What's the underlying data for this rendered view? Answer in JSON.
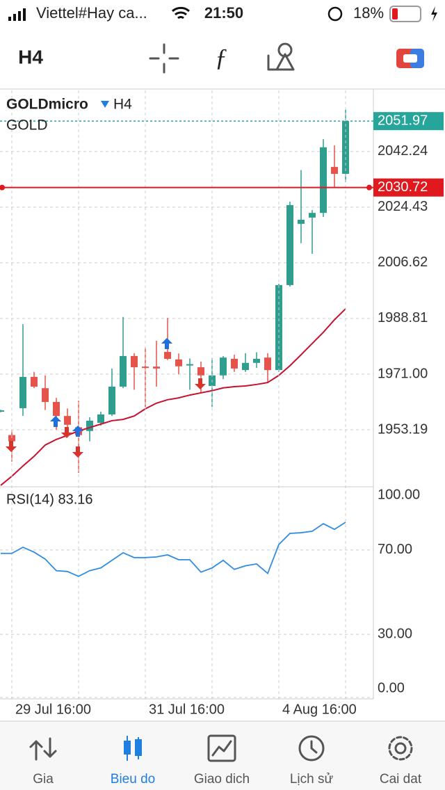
{
  "status_bar": {
    "carrier": "Viettel#Hay ca...",
    "time": "21:50",
    "battery": "18%"
  },
  "toolbar": {
    "timeframe": "H4"
  },
  "chart_data": [
    {
      "type": "candlestick",
      "symbol": "GOLDmicro",
      "timeframe": "H4",
      "description": "GOLD",
      "categories": [
        null,
        "29 Jul 16:00",
        null,
        null,
        null,
        null,
        null,
        null,
        null,
        null,
        null,
        null,
        null,
        "31 Jul 16:00",
        null,
        null,
        null,
        null,
        null,
        null,
        null,
        null,
        null,
        null,
        null,
        "4 Aug 16:00",
        null,
        null,
        null,
        null,
        null,
        null
      ],
      "open": [
        1959.0,
        1951.5,
        1960.1,
        1970.1,
        1966.5,
        1962.1,
        1957.6,
        1954.0,
        1952.8,
        1955.4,
        1958.1,
        1967.0,
        1976.8,
        1973.4,
        1973.4,
        1978.1,
        1975.7,
        1973.8,
        1973.2,
        1967.2,
        1970.6,
        1975.9,
        1972.3,
        1974.6,
        1976.3,
        1972.3,
        1999.5,
        2019.1,
        2021.1,
        2022.6,
        2037.3,
        2035.1
      ],
      "high": [
        1959.6,
        1953.0,
        1987.0,
        1971.7,
        1970.6,
        1963.4,
        1960.0,
        1962.5,
        1957.2,
        1959.0,
        1972.8,
        1989.3,
        1977.7,
        1979.5,
        1981.7,
        1989.0,
        1977.6,
        1976.0,
        1975.0,
        1976.1,
        1976.8,
        1977.2,
        1977.7,
        1978.0,
        1977.7,
        1999.9,
        2026.2,
        2036.3,
        2023.5,
        2046.2,
        2044.2,
        2055.6
      ],
      "low": [
        1958.8,
        1943.0,
        1957.6,
        1966.5,
        1959.5,
        1953.2,
        1951.0,
        1939.4,
        1949.5,
        1954.5,
        1957.6,
        1966.5,
        1966.0,
        1960.5,
        1967.0,
        1975.5,
        1971.0,
        1966.0,
        1965.0,
        1960.5,
        1969.4,
        1971.7,
        1971.7,
        1973.0,
        1968.3,
        1971.7,
        1999.0,
        2012.9,
        2009.5,
        2021.3,
        2030.6,
        2032.4
      ],
      "close": [
        1959.4,
        1949.5,
        1970.1,
        1967.0,
        1962.1,
        1957.6,
        1954.8,
        1951.5,
        1956.1,
        1958.1,
        1967.0,
        1976.8,
        1973.2,
        1973.0,
        1972.8,
        1975.9,
        1973.5,
        1974.2,
        1970.6,
        1970.6,
        1976.3,
        1972.8,
        1974.6,
        1975.9,
        1972.3,
        1999.5,
        2025.1,
        2020.4,
        2022.6,
        2043.6,
        2035.1,
        2051.97
      ],
      "up_color": "#2f9e8f",
      "down_color": "#e5534b",
      "series": [
        {
          "color": "#c8102e",
          "values": [
            1935.4,
            1938.3,
            1941.6,
            1944.7,
            1948.3,
            1950.1,
            1951.4,
            1952.8,
            1953.9,
            1955.0,
            1956.1,
            1956.5,
            1957.6,
            1959.9,
            1961.7,
            1962.8,
            1963.4,
            1964.3,
            1965.0,
            1965.7,
            1966.6,
            1967.0,
            1967.2,
            1967.7,
            1968.3,
            1970.6,
            1973.7,
            1977.2,
            1980.8,
            1984.4,
            1988.4,
            1991.9
          ]
        }
      ],
      "bid": 2051.97,
      "bid_color": "#26a69a",
      "alert": 2030.72,
      "alert_color": "#e0191e",
      "ylim": [
        1934.94,
        2061.8
      ],
      "yticks": [
        1953.19,
        {
          "value": 1971,
          "label": "1971.00"
        },
        1988.81,
        2006.62,
        2024.43,
        2042.24
      ],
      "grid": true
    },
    {
      "type": "line",
      "title": "RSI(14) 83.16",
      "color": "#2f8ce0",
      "values": [
        68.4,
        68.4,
        71.3,
        69.0,
        65.7,
        60.2,
        59.8,
        57.5,
        60.2,
        61.5,
        65.1,
        68.7,
        66.4,
        66.4,
        66.7,
        67.7,
        65.4,
        65.4,
        59.5,
        61.5,
        65.1,
        60.8,
        62.5,
        63.4,
        58.9,
        72.6,
        77.9,
        78.2,
        78.9,
        82.5,
        79.8,
        83.16
      ],
      "ylim": [
        0,
        100
      ],
      "yticks": [
        {
          "value": 0,
          "label": "0.00"
        },
        {
          "value": 30,
          "label": "30.00"
        },
        {
          "value": 70,
          "label": "70.00"
        },
        {
          "value": 100,
          "label": "100.00"
        }
      ],
      "grid": true
    }
  ],
  "nav": {
    "items": [
      "Gia",
      "Bieu do",
      "Giao dich",
      "Lịch sử",
      "Cai dat"
    ]
  }
}
